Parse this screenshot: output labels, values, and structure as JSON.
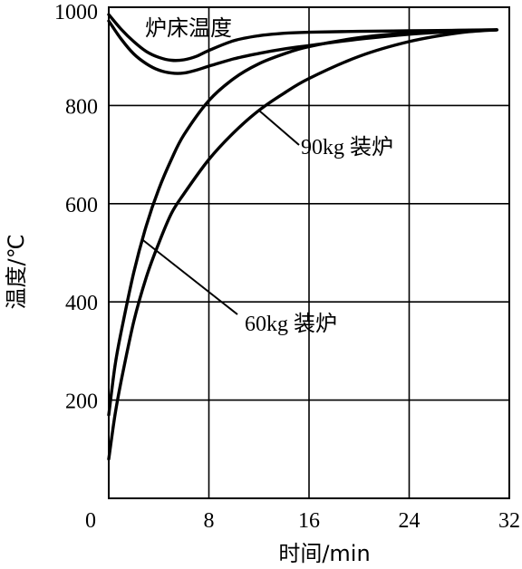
{
  "chart_data": {
    "type": "line",
    "xlabel": "时间/min",
    "ylabel": "温度/℃",
    "xlim": [
      0,
      32
    ],
    "ylim": [
      0,
      1000
    ],
    "xticks": [
      0,
      8,
      16,
      24,
      32
    ],
    "yticks": [
      0,
      200,
      400,
      600,
      800,
      1000
    ],
    "grid": true,
    "annotations": {
      "furnace": "炉床温度",
      "load90": "90kg 装炉",
      "load60": "60kg 装炉"
    },
    "series": [
      {
        "key": "furnace_upper",
        "x": [
          0,
          1,
          2,
          3,
          4,
          5,
          6,
          7,
          8,
          10,
          12,
          14,
          16,
          20,
          24,
          28,
          31
        ],
        "y": [
          985,
          955,
          930,
          910,
          898,
          892,
          893,
          900,
          912,
          932,
          942,
          947,
          949,
          951,
          952,
          953,
          954
        ]
      },
      {
        "key": "furnace_lower",
        "x": [
          0,
          1,
          2,
          3,
          4,
          5,
          6,
          7,
          8,
          10,
          12,
          14,
          16,
          20,
          24,
          28,
          31
        ],
        "y": [
          972,
          935,
          905,
          885,
          872,
          866,
          866,
          872,
          880,
          895,
          906,
          915,
          922,
          935,
          945,
          951,
          954
        ]
      },
      {
        "key": "load60",
        "x": [
          0,
          0.5,
          1,
          2,
          3,
          4,
          5,
          6,
          8,
          10,
          12,
          14,
          16,
          20,
          24,
          28,
          31
        ],
        "y": [
          170,
          270,
          340,
          460,
          555,
          630,
          690,
          740,
          810,
          855,
          885,
          905,
          920,
          938,
          948,
          953,
          954
        ]
      },
      {
        "key": "load90",
        "x": [
          0,
          0.5,
          1,
          2,
          3,
          4,
          5,
          6,
          8,
          10,
          12,
          14,
          16,
          20,
          24,
          28,
          31
        ],
        "y": [
          80,
          170,
          240,
          360,
          450,
          520,
          580,
          620,
          690,
          745,
          790,
          825,
          855,
          900,
          930,
          948,
          954
        ]
      }
    ]
  }
}
